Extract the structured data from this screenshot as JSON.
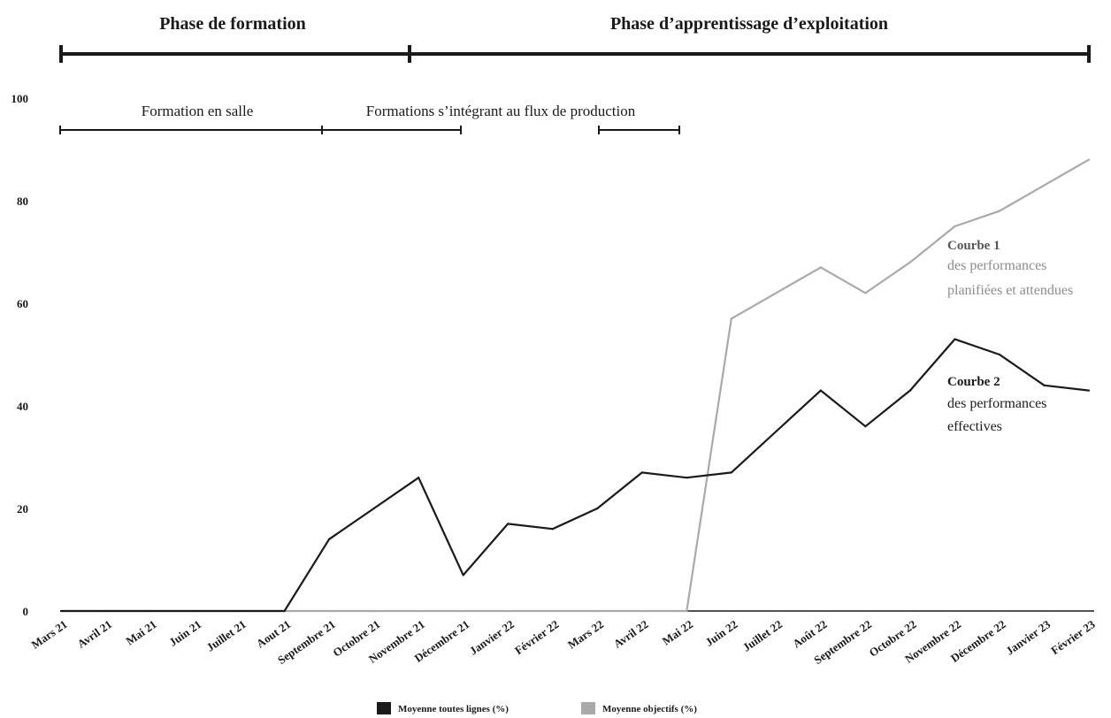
{
  "phases": {
    "formation": "Phase de formation",
    "exploitation": "Phase d’apprentissage d’exploitation"
  },
  "sublabels": {
    "salle": "Formation en salle",
    "flux": "Formations s’intégrant au flux de production"
  },
  "annotations": {
    "courbe1_title": "Courbe 1",
    "courbe1_line1": "des performances",
    "courbe1_line2": "planifiées et attendues",
    "courbe2_title": "Courbe 2",
    "courbe2_line1": "des performances",
    "courbe2_line2": "effectives"
  },
  "legend": {
    "actual": "Moyenne toutes lignes (%)",
    "target": "Moyenne objectifs (%)"
  },
  "colors": {
    "actual": "#1a1a1a",
    "target": "#a9a9a9"
  },
  "chart_data": {
    "type": "line",
    "ylim": [
      0,
      100
    ],
    "yticks": [
      "0",
      "20",
      "40",
      "60",
      "80",
      "100"
    ],
    "yticks_values": [
      0,
      20,
      40,
      60,
      80,
      100
    ],
    "categories": [
      "Mars 21",
      "Avril 21",
      "Mai 21",
      "Juin 21",
      "Juillet 21",
      "Aout 21",
      "Septembre 21",
      "Octobre 21",
      "Novembre 21",
      "Décembre 21",
      "Janvier 22",
      "Février 22",
      "Mars 22",
      "Avril 22",
      "Mai 22",
      "Juin 22",
      "Juillet 22",
      "Août 22",
      "Septembre 22",
      "Octobre 22",
      "Novembre 22",
      "Décembre 22",
      "Janvier 23",
      "Février 23"
    ],
    "series": [
      {
        "name": "Moyenne toutes lignes (%)",
        "values": [
          0,
          0,
          0,
          0,
          0,
          0,
          14,
          20,
          26,
          7,
          17,
          16,
          20,
          27,
          26,
          27,
          35,
          43,
          36,
          43,
          53,
          50,
          44,
          43
        ]
      },
      {
        "name": "Moyenne objectifs (%)",
        "values": [
          0,
          0,
          0,
          0,
          0,
          0,
          0,
          0,
          0,
          0,
          0,
          0,
          0,
          0,
          0,
          57,
          62,
          67,
          62,
          68,
          75,
          78,
          83,
          88
        ]
      }
    ]
  }
}
